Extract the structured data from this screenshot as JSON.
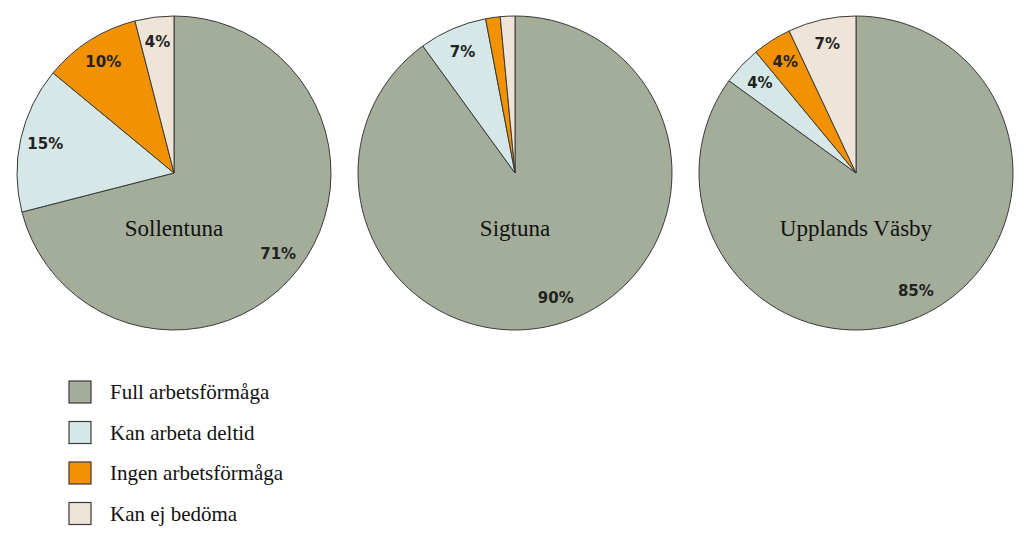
{
  "chart_data": [
    {
      "type": "pie",
      "title": "Sollentuna",
      "categories": [
        "Full arbetsförmåga",
        "Kan arbeta deltid",
        "Ingen arbetsförmåga",
        "Kan ej bedöma"
      ],
      "values": [
        71,
        15,
        10,
        4
      ],
      "value_labels": [
        "71%",
        "15%",
        "10%",
        "4%"
      ],
      "colors": [
        "#a4ad9a",
        "#d6e7e7",
        "#f39200",
        "#eee4d7"
      ],
      "data_labels": true,
      "legend": "bottom-left"
    },
    {
      "type": "pie",
      "title": "Sigtuna",
      "values": [
        90,
        7,
        1.5,
        1.5
      ],
      "value_labels": [
        "90%",
        "7%",
        null,
        null
      ],
      "colors": [
        "#a4ad9a",
        "#d6e7e7",
        "#f39200",
        "#eee4d7"
      ],
      "data_labels": true
    },
    {
      "type": "pie",
      "title": "Upplands Väsby",
      "values": [
        85,
        4,
        4,
        7
      ],
      "value_labels": [
        "85%",
        "4%",
        "4%",
        "7%"
      ],
      "colors": [
        "#a4ad9a",
        "#d6e7e7",
        "#f39200",
        "#eee4d7"
      ],
      "data_labels": true
    }
  ]
}
